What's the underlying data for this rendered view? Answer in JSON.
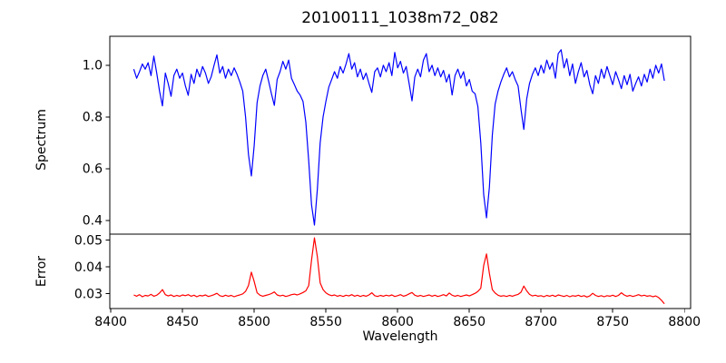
{
  "figure": {
    "background": "#ffffff",
    "spine_color": "#000000",
    "text_color": "#000000"
  },
  "chart_data": {
    "type": "line",
    "title": "20100111_1038m72_082",
    "xlabel": "Wavelength",
    "x_start": 8416,
    "x_step": 2,
    "xlim": [
      8399.3,
      8804.3
    ],
    "xticks": [
      "8400",
      "8450",
      "8500",
      "8550",
      "8600",
      "8650",
      "8700",
      "8750",
      "8800"
    ],
    "grid": false,
    "legend": "none",
    "panels": [
      {
        "name": "spectrum",
        "ylabel": "Spectrum",
        "ylim": [
          0.347,
          1.112
        ],
        "yticks": [
          "0.4",
          "0.6",
          "0.8",
          "1.0"
        ],
        "color": "#0000ff",
        "values": [
          0.985,
          0.95,
          0.975,
          1.005,
          0.985,
          1.01,
          0.96,
          1.035,
          0.97,
          0.9,
          0.843,
          0.97,
          0.93,
          0.88,
          0.96,
          0.985,
          0.95,
          0.97,
          0.92,
          0.884,
          0.965,
          0.93,
          0.985,
          0.955,
          0.995,
          0.97,
          0.93,
          0.955,
          1.0,
          1.04,
          0.97,
          0.995,
          0.95,
          0.985,
          0.96,
          0.99,
          0.965,
          0.935,
          0.9,
          0.8,
          0.655,
          0.572,
          0.69,
          0.855,
          0.92,
          0.96,
          0.985,
          0.94,
          0.89,
          0.845,
          0.945,
          0.975,
          1.015,
          0.985,
          1.02,
          0.95,
          0.925,
          0.9,
          0.885,
          0.86,
          0.78,
          0.63,
          0.46,
          0.382,
          0.52,
          0.7,
          0.8,
          0.86,
          0.915,
          0.945,
          0.975,
          0.95,
          0.995,
          0.97,
          1.005,
          1.045,
          0.985,
          1.01,
          0.955,
          0.985,
          0.945,
          0.97,
          0.93,
          0.895,
          0.975,
          0.99,
          0.955,
          1.0,
          0.975,
          1.01,
          0.96,
          1.05,
          0.99,
          1.015,
          0.97,
          0.995,
          0.93,
          0.862,
          0.955,
          0.985,
          0.955,
          1.02,
          1.045,
          0.975,
          1.0,
          0.96,
          0.99,
          0.955,
          0.98,
          0.935,
          0.965,
          0.885,
          0.96,
          0.985,
          0.95,
          0.975,
          0.92,
          0.945,
          0.9,
          0.89,
          0.84,
          0.7,
          0.5,
          0.41,
          0.53,
          0.73,
          0.85,
          0.9,
          0.935,
          0.965,
          0.99,
          0.955,
          0.975,
          0.945,
          0.92,
          0.83,
          0.752,
          0.87,
          0.93,
          0.965,
          0.99,
          0.96,
          1.0,
          0.97,
          1.02,
          0.985,
          1.01,
          0.95,
          1.045,
          1.06,
          0.99,
          1.025,
          0.96,
          1.005,
          0.93,
          0.975,
          1.01,
          0.955,
          0.98,
          0.925,
          0.89,
          0.96,
          0.93,
          0.985,
          0.95,
          0.995,
          0.96,
          0.925,
          0.975,
          0.945,
          0.91,
          0.96,
          0.925,
          0.965,
          0.9,
          0.93,
          0.955,
          0.92,
          0.965,
          0.935,
          0.985,
          0.95,
          1.0,
          0.97,
          1.005,
          0.94
        ]
      },
      {
        "name": "error",
        "ylabel": "Error",
        "ylim": [
          0.0244,
          0.0522
        ],
        "yticks": [
          "0.03",
          "0.04",
          "0.05"
        ],
        "color": "#ff0000",
        "values": [
          0.0295,
          0.029,
          0.0296,
          0.0288,
          0.0293,
          0.0291,
          0.0297,
          0.029,
          0.0294,
          0.0302,
          0.0315,
          0.0296,
          0.0291,
          0.0295,
          0.0289,
          0.0293,
          0.029,
          0.0295,
          0.0292,
          0.0296,
          0.029,
          0.0294,
          0.0288,
          0.0293,
          0.0291,
          0.0295,
          0.0289,
          0.0292,
          0.0296,
          0.0301,
          0.0292,
          0.0289,
          0.0294,
          0.029,
          0.0293,
          0.0288,
          0.0292,
          0.0295,
          0.0299,
          0.0308,
          0.033,
          0.038,
          0.0345,
          0.0303,
          0.0294,
          0.029,
          0.0293,
          0.0296,
          0.03,
          0.0306,
          0.0295,
          0.0291,
          0.0294,
          0.0289,
          0.0292,
          0.0296,
          0.0298,
          0.0295,
          0.0299,
          0.0304,
          0.031,
          0.033,
          0.0425,
          0.0508,
          0.0438,
          0.034,
          0.0315,
          0.0303,
          0.0296,
          0.0292,
          0.0295,
          0.029,
          0.0293,
          0.0289,
          0.0294,
          0.0291,
          0.0296,
          0.029,
          0.0294,
          0.0289,
          0.0293,
          0.029,
          0.0295,
          0.0303,
          0.0292,
          0.0289,
          0.0293,
          0.029,
          0.0294,
          0.0291,
          0.0295,
          0.0289,
          0.0292,
          0.0296,
          0.029,
          0.0293,
          0.0299,
          0.0304,
          0.0294,
          0.029,
          0.0293,
          0.0289,
          0.0292,
          0.0295,
          0.029,
          0.0294,
          0.0289,
          0.0292,
          0.0296,
          0.0291,
          0.0302,
          0.0294,
          0.029,
          0.0293,
          0.0289,
          0.0292,
          0.0295,
          0.0291,
          0.0296,
          0.0301,
          0.0308,
          0.032,
          0.0405,
          0.0448,
          0.0375,
          0.0315,
          0.0302,
          0.0294,
          0.029,
          0.0292,
          0.0289,
          0.0293,
          0.029,
          0.0294,
          0.0297,
          0.0305,
          0.0328,
          0.031,
          0.0297,
          0.0291,
          0.0294,
          0.029,
          0.0292,
          0.0288,
          0.0293,
          0.029,
          0.0294,
          0.0289,
          0.0295,
          0.0292,
          0.0289,
          0.0293,
          0.0288,
          0.0292,
          0.029,
          0.0294,
          0.0289,
          0.0292,
          0.0287,
          0.0291,
          0.0301,
          0.0293,
          0.0289,
          0.0292,
          0.0288,
          0.0292,
          0.029,
          0.0294,
          0.0289,
          0.0293,
          0.0303,
          0.0295,
          0.029,
          0.0293,
          0.0289,
          0.0292,
          0.0296,
          0.0291,
          0.0294,
          0.029,
          0.0292,
          0.0288,
          0.0291,
          0.0285,
          0.0275,
          0.0262
        ]
      }
    ]
  }
}
